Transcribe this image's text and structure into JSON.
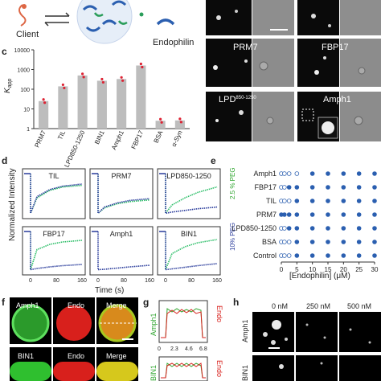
{
  "panels": {
    "a_client": "Client",
    "a_endophilin": "Endophilin",
    "b_prm7": "PRM7",
    "b_fbp17": "FBP17",
    "b_lpd_main": "LPD",
    "b_lpd_sup": "850-1250",
    "b_amph1": "Amph1",
    "c_label": "c",
    "d_label": "d",
    "e_label": "e",
    "f_label": "f",
    "g_label": "g",
    "h_label": "h"
  },
  "chart_data": [
    {
      "id": "c",
      "type": "bar",
      "ylabel_main": "K",
      "ylabel_sub": "app",
      "yscale": "log",
      "ylim": [
        1,
        10000
      ],
      "yticks": [
        "1",
        "10",
        "100",
        "1000",
        "10000"
      ],
      "categories": [
        "PRM7",
        "TIL",
        "LPD850-1250",
        "BIN1",
        "Amph1",
        "FBP17",
        "BSA",
        "α-Syn"
      ],
      "values": [
        25,
        140,
        500,
        270,
        330,
        1600,
        2.5,
        2.6
      ]
    },
    {
      "id": "d",
      "type": "line",
      "ylabel": "Normalized Intensity",
      "xlabel": "Time (s)",
      "xticks": [
        "0",
        "80",
        "160"
      ],
      "legend": [
        "10% PEG",
        "2.5 % PEG"
      ],
      "colors": {
        "peg10": "#2b3d9c",
        "peg25": "#2fbf6a",
        "band": "#a9b6e8"
      },
      "subplots": [
        {
          "name": "TIL",
          "peg10": [
            [
              0,
              0.05
            ],
            [
              20,
              0.45
            ],
            [
              60,
              0.62
            ],
            [
              100,
              0.7
            ],
            [
              160,
              0.75
            ]
          ],
          "peg25": [
            [
              0,
              0.05
            ],
            [
              20,
              0.42
            ],
            [
              60,
              0.6
            ],
            [
              100,
              0.68
            ],
            [
              160,
              0.72
            ]
          ]
        },
        {
          "name": "PRM7",
          "peg10": [
            [
              0,
              0.05
            ],
            [
              20,
              0.2
            ],
            [
              60,
              0.3
            ],
            [
              100,
              0.36
            ],
            [
              160,
              0.4
            ]
          ],
          "peg25": [
            [
              0,
              0.05
            ],
            [
              20,
              0.18
            ],
            [
              60,
              0.28
            ],
            [
              100,
              0.33
            ],
            [
              160,
              0.37
            ]
          ]
        },
        {
          "name": "LPD850-1250",
          "peg10": [
            [
              0,
              0.05
            ],
            [
              20,
              0.08
            ],
            [
              60,
              0.12
            ],
            [
              100,
              0.16
            ],
            [
              160,
              0.2
            ]
          ],
          "peg25": [
            [
              0,
              0.05
            ],
            [
              20,
              0.25
            ],
            [
              60,
              0.42
            ],
            [
              100,
              0.55
            ],
            [
              160,
              0.68
            ]
          ]
        },
        {
          "name": "FBP17",
          "peg10": [
            [
              0,
              0.05
            ],
            [
              20,
              0.08
            ],
            [
              60,
              0.12
            ],
            [
              100,
              0.15
            ],
            [
              160,
              0.18
            ]
          ],
          "peg25": [
            [
              0,
              0.05
            ],
            [
              20,
              0.55
            ],
            [
              60,
              0.68
            ],
            [
              100,
              0.74
            ],
            [
              160,
              0.78
            ]
          ]
        },
        {
          "name": "Amph1",
          "peg10": [
            [
              0,
              0.05
            ],
            [
              20,
              0.06
            ],
            [
              60,
              0.09
            ],
            [
              100,
              0.12
            ],
            [
              160,
              0.16
            ]
          ],
          "peg25": []
        },
        {
          "name": "BIN1",
          "peg10": [
            [
              0,
              0.05
            ],
            [
              20,
              0.07
            ],
            [
              60,
              0.11
            ],
            [
              100,
              0.15
            ],
            [
              160,
              0.2
            ]
          ],
          "peg25": [
            [
              0,
              0.05
            ],
            [
              20,
              0.45
            ],
            [
              60,
              0.62
            ],
            [
              100,
              0.72
            ],
            [
              160,
              0.8
            ]
          ]
        }
      ]
    },
    {
      "id": "e",
      "type": "scatter",
      "xlabel": "[Endophilin] (μM)",
      "xticks": [
        "0",
        "5",
        "10",
        "15",
        "20",
        "25",
        "30"
      ],
      "rows": [
        "Amph1",
        "FBP17",
        "TIL",
        "PRM7",
        "LPD850-1250",
        "BSA",
        "Control"
      ],
      "legend": [
        "10% PEG",
        "2.5 % PEG"
      ]
    }
  ],
  "f": {
    "cols": [
      "Amph1",
      "Endo",
      "Merge"
    ],
    "rows": [
      "Amph1",
      "BIN1"
    ]
  },
  "g": {
    "legend_top": [
      "Amph1",
      "Endo"
    ],
    "legend_bottom": [
      "BIN1",
      "Endo"
    ],
    "xticks": [
      "0",
      "2.3",
      "4.6",
      "6.8"
    ]
  },
  "h": {
    "cols": [
      "0 nM",
      "250 nM",
      "500 nM"
    ],
    "rows": [
      "Amph1",
      "BIN1"
    ]
  }
}
